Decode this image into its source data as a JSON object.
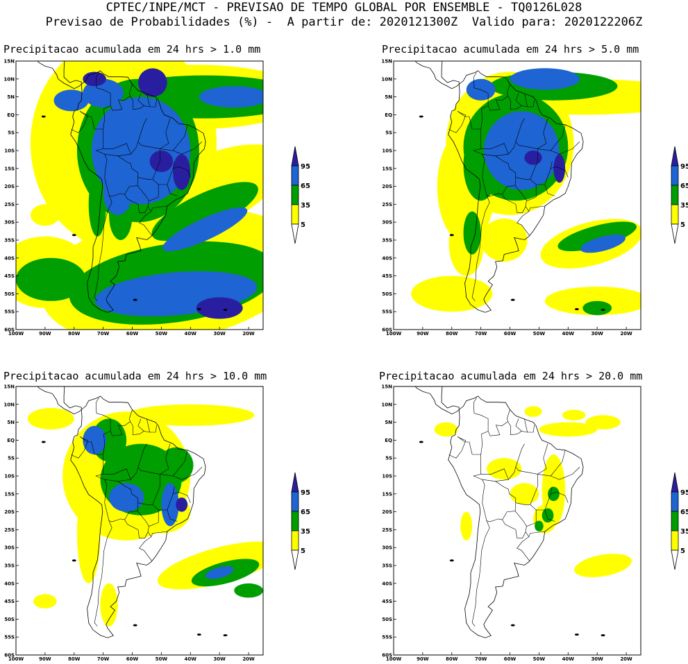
{
  "header": {
    "line1": "CPTEC/INPE/MCT - PREVISAO DE TEMPO GLOBAL POR ENSEMBLE - TQ0126L028",
    "line2": "Previsao de Probabilidades (%) -  A partir de: 2020121300Z  Valido para: 2020122206Z"
  },
  "colors": {
    "white": "#ffffff",
    "yellow": "#ffff00",
    "green": "#009e00",
    "blue": "#1e64d2",
    "navy": "#2a1ea0",
    "coast": "#000000"
  },
  "colorbar_labels": [
    "95",
    "65",
    "35",
    "5"
  ],
  "lat_labels": [
    "15N",
    "10N",
    "5N",
    "EQ",
    "5S",
    "10S",
    "15S",
    "20S",
    "25S",
    "30S",
    "35S",
    "40S",
    "45S",
    "50S",
    "55S",
    "60S"
  ],
  "lon_labels": [
    "100W",
    "90W",
    "80W",
    "70W",
    "60W",
    "50W",
    "40W",
    "30W",
    "20W"
  ],
  "panels": [
    {
      "title": "Precipitacao acumulada em 24 hrs > 1.0 mm"
    },
    {
      "title": "Precipitacao acumulada em 24 hrs > 5.0 mm"
    },
    {
      "title": "Precipitacao acumulada em 24 hrs > 10.0 mm"
    },
    {
      "title": "Precipitacao acumulada em 24 hrs > 20.0 mm"
    }
  ]
}
